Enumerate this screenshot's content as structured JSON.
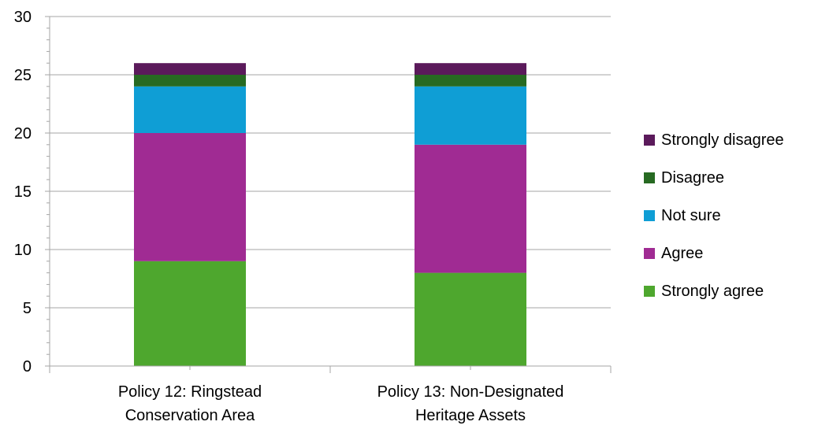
{
  "chart_data": {
    "type": "bar",
    "stacked": true,
    "categories": [
      [
        "Policy 12: Ringstead",
        "Conservation Area"
      ],
      [
        "Policy 13: Non-Designated",
        "Heritage Assets"
      ]
    ],
    "series": [
      {
        "name": "Strongly agree",
        "color": "#4ea72e",
        "values": [
          9,
          8
        ]
      },
      {
        "name": "Agree",
        "color": "#a02b93",
        "values": [
          11,
          11
        ]
      },
      {
        "name": "Not sure",
        "color": "#0f9ed5",
        "values": [
          4,
          5
        ]
      },
      {
        "name": "Disagree",
        "color": "#276a22",
        "values": [
          1,
          1
        ]
      },
      {
        "name": "Strongly disagree",
        "color": "#5b1a5b",
        "values": [
          1,
          1
        ]
      }
    ],
    "yticks": [
      "0",
      "5",
      "10",
      "15",
      "20",
      "25",
      "30"
    ],
    "ylim": [
      0,
      30
    ],
    "ymajor": 5,
    "yminor": 1,
    "grid": true,
    "gridColor": "#a6a6a6",
    "legend_position": "right"
  }
}
